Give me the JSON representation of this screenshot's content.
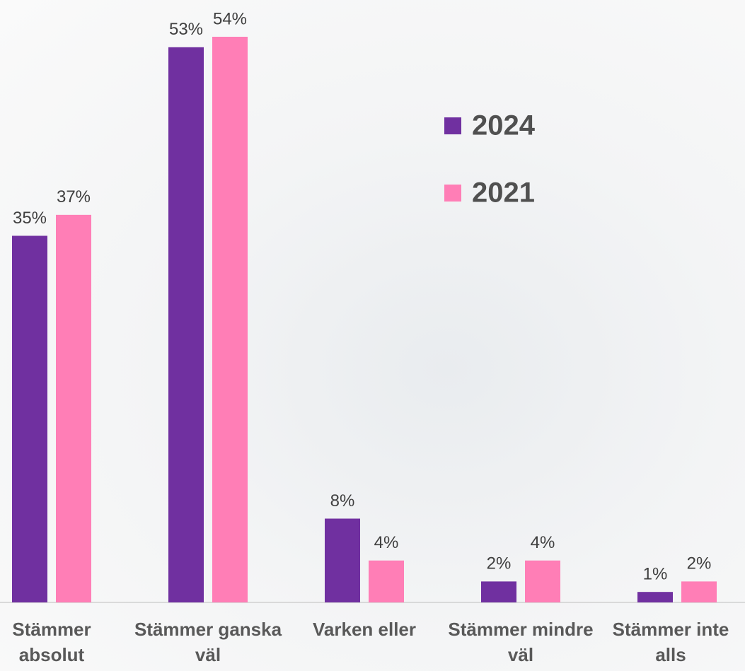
{
  "chart_data": {
    "type": "bar",
    "categories": [
      "Stämmer absolut",
      "Stämmer ganska väl",
      "Varken eller",
      "Stämmer mindre väl",
      "Stämmer inte alls"
    ],
    "series": [
      {
        "name": "2024",
        "color": "#7030a0",
        "values": [
          35,
          53,
          8,
          2,
          1
        ],
        "value_labels": [
          "35%",
          "53%",
          "8%",
          "2%",
          "1%"
        ]
      },
      {
        "name": "2021",
        "color": "#ff7eb6",
        "values": [
          37,
          54,
          4,
          4,
          2
        ],
        "value_labels": [
          "37%",
          "54%",
          "4%",
          "4%",
          "2%"
        ]
      }
    ],
    "ylim": [
      0,
      54
    ]
  }
}
